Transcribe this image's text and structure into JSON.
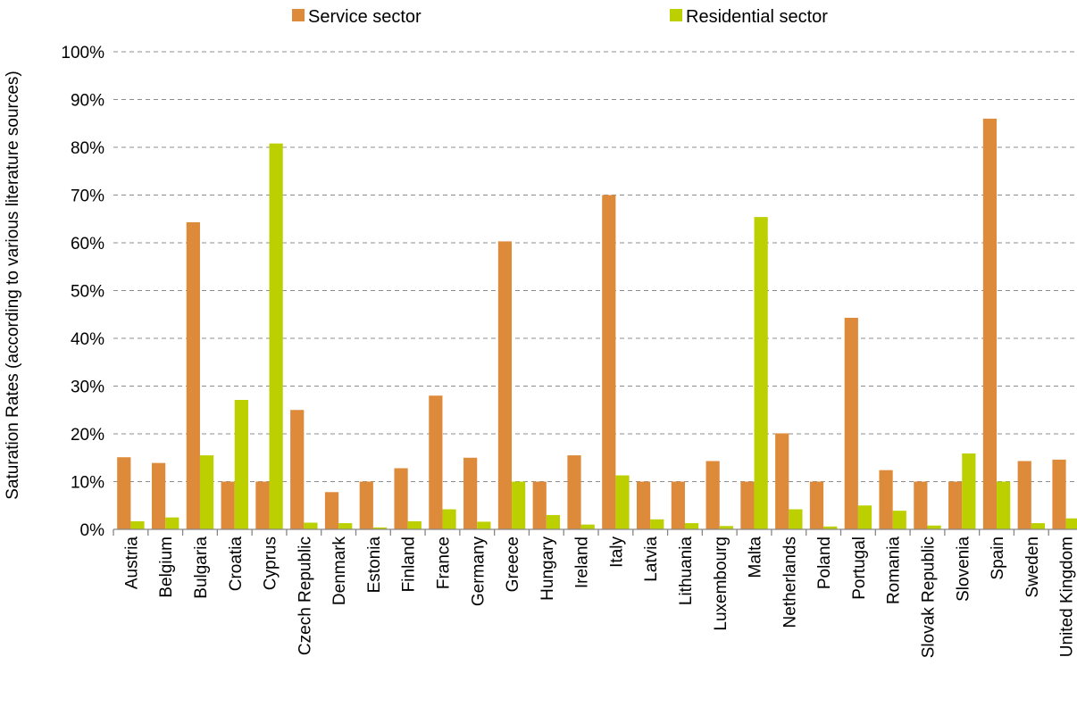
{
  "chart_data": {
    "type": "bar",
    "title": "",
    "xlabel": "",
    "ylabel": "Saturation Rates (according to various literature sources)",
    "ylim": [
      0,
      100
    ],
    "ytick_step": 10,
    "y_format": "percent",
    "grid": true,
    "legend_position": "top",
    "categories": [
      "Austria",
      "Belgium",
      "Bulgaria",
      "Croatia",
      "Cyprus",
      "Czech Republic",
      "Denmark",
      "Estonia",
      "Finland",
      "France",
      "Germany",
      "Greece",
      "Hungary",
      "Ireland",
      "Italy",
      "Latvia",
      "Lithuania",
      "Luxembourg",
      "Malta",
      "Netherlands",
      "Poland",
      "Portugal",
      "Romania",
      "Slovak Republic",
      "Slovenia",
      "Spain",
      "Sweden",
      "United Kingdom"
    ],
    "series": [
      {
        "name": "Service sector",
        "color": "#DE8A3B",
        "values": [
          15.1,
          13.9,
          64.3,
          10.0,
          10.0,
          25.0,
          7.8,
          10.0,
          12.8,
          28.0,
          15.0,
          60.3,
          10.0,
          15.5,
          70.0,
          10.0,
          10.0,
          14.3,
          10.0,
          20.1,
          10.0,
          44.3,
          12.4,
          10.0,
          10.0,
          86.0,
          14.3,
          14.6
        ]
      },
      {
        "name": "Residential sector",
        "color": "#BCD000",
        "values": [
          1.7,
          2.5,
          15.5,
          27.1,
          80.8,
          1.4,
          1.3,
          0.4,
          1.7,
          4.2,
          1.6,
          10.0,
          3.0,
          1.0,
          11.3,
          2.1,
          1.3,
          0.7,
          65.4,
          4.2,
          0.6,
          5.0,
          3.9,
          0.8,
          15.9,
          10.0,
          1.3,
          2.3
        ]
      }
    ]
  }
}
